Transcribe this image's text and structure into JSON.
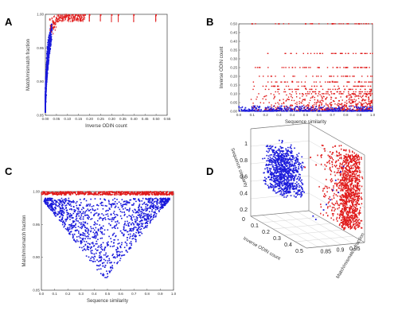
{
  "panels": {
    "a": {
      "letter": "A"
    },
    "b": {
      "letter": "B"
    },
    "c": {
      "letter": "C"
    },
    "d": {
      "letter": "D"
    }
  },
  "colors": {
    "blue": "#1a1adb",
    "red": "#e01b1b"
  },
  "chart_data": [
    {
      "id": "A",
      "type": "scatter",
      "xlabel": "Inverse ODIN count",
      "ylabel": "Match/mismatch fraction",
      "xlim": [
        0,
        0.55
      ],
      "ylim": [
        0.85,
        1.0
      ],
      "xticks": [
        "0.00",
        "0.05",
        "0.10",
        "0.15",
        "0.20",
        "0.25",
        "0.30",
        "0.35",
        "0.40",
        "0.45",
        "0.50",
        "0.55"
      ],
      "yticks": [
        "0.85",
        "0.90",
        "0.95",
        "1.00"
      ],
      "series": [
        {
          "color": "blue",
          "points": [
            [
              0.002,
              0.87
            ],
            [
              0.003,
              0.885
            ],
            [
              0.004,
              0.9
            ],
            [
              0.005,
              0.91
            ],
            [
              0.006,
              0.92
            ],
            [
              0.007,
              0.93
            ],
            [
              0.008,
              0.94
            ],
            [
              0.01,
              0.95
            ],
            [
              0.012,
              0.955
            ],
            [
              0.014,
              0.96
            ],
            [
              0.016,
              0.965
            ],
            [
              0.018,
              0.968
            ],
            [
              0.02,
              0.972
            ],
            [
              0.025,
              0.975
            ],
            [
              0.003,
              0.895
            ],
            [
              0.005,
              0.925
            ],
            [
              0.004,
              0.915
            ],
            [
              0.006,
              0.935
            ],
            [
              0.008,
              0.945
            ],
            [
              0.009,
              0.952
            ],
            [
              0.011,
              0.958
            ],
            [
              0.013,
              0.962
            ],
            [
              0.002,
              0.905
            ],
            [
              0.003,
              0.918
            ],
            [
              0.007,
              0.942
            ],
            [
              0.01,
              0.948
            ],
            [
              0.015,
              0.966
            ],
            [
              0.017,
              0.969
            ],
            [
              0.022,
              0.973
            ],
            [
              0.03,
              0.977
            ],
            [
              0.004,
              0.88
            ],
            [
              0.002,
              0.89
            ],
            [
              0.006,
              0.928
            ],
            [
              0.009,
              0.938
            ],
            [
              0.012,
              0.951
            ],
            [
              0.019,
              0.964
            ]
          ]
        },
        {
          "color": "red",
          "points": [
            [
              0.03,
              0.983
            ],
            [
              0.04,
              0.987
            ],
            [
              0.05,
              0.99
            ],
            [
              0.06,
              0.993
            ],
            [
              0.07,
              0.995
            ],
            [
              0.08,
              0.996
            ],
            [
              0.09,
              0.997
            ],
            [
              0.1,
              0.998
            ],
            [
              0.11,
              0.998
            ],
            [
              0.12,
              0.999
            ],
            [
              0.14,
              0.999
            ],
            [
              0.16,
              0.999
            ],
            [
              0.18,
              0.999
            ],
            [
              0.2,
              0.999
            ],
            [
              0.25,
              0.999
            ],
            [
              0.3,
              0.999
            ],
            [
              0.33,
              0.999
            ],
            [
              0.4,
              0.999
            ],
            [
              0.5,
              0.999
            ],
            [
              0.035,
              0.98
            ],
            [
              0.045,
              0.985
            ],
            [
              0.055,
              0.989
            ],
            [
              0.065,
              0.991
            ],
            [
              0.075,
              0.994
            ],
            [
              0.085,
              0.996
            ],
            [
              0.095,
              0.997
            ],
            [
              0.105,
              0.999
            ],
            [
              0.125,
              0.999
            ],
            [
              0.15,
              0.999
            ],
            [
              0.17,
              0.999
            ]
          ]
        }
      ]
    },
    {
      "id": "B",
      "type": "scatter",
      "xlabel": "Sequence similarity",
      "ylabel": "Inverse ODIN count",
      "xlim": [
        0,
        1.0
      ],
      "ylim": [
        0,
        0.5
      ],
      "xticks": [
        "0.0",
        "0.1",
        "0.2",
        "0.3",
        "0.4",
        "0.5",
        "0.6",
        "0.7",
        "0.8",
        "0.9",
        "1.0"
      ],
      "yticks": [
        "0.00",
        "0.05",
        "0.10",
        "0.15",
        "0.20",
        "0.25",
        "0.30",
        "0.35",
        "0.40",
        "0.45",
        "0.50"
      ],
      "series": [
        {
          "color": "blue",
          "points": [
            [
              0.02,
              0.01
            ],
            [
              0.05,
              0.02
            ],
            [
              0.08,
              0.01
            ],
            [
              0.1,
              0.02
            ],
            [
              0.15,
              0.01
            ],
            [
              0.2,
              0.02
            ],
            [
              0.25,
              0.01
            ],
            [
              0.3,
              0.02
            ],
            [
              0.35,
              0.01
            ],
            [
              0.4,
              0.01
            ],
            [
              0.45,
              0.02
            ],
            [
              0.5,
              0.01
            ],
            [
              0.55,
              0.01
            ],
            [
              0.6,
              0.02
            ],
            [
              0.65,
              0.01
            ],
            [
              0.7,
              0.01
            ],
            [
              0.75,
              0.02
            ],
            [
              0.8,
              0.01
            ],
            [
              0.85,
              0.01
            ],
            [
              0.9,
              0.01
            ],
            [
              0.95,
              0.01
            ],
            [
              0.12,
              0.03
            ],
            [
              0.22,
              0.02
            ],
            [
              0.32,
              0.03
            ],
            [
              0.42,
              0.02
            ],
            [
              0.52,
              0.02
            ],
            [
              0.62,
              0.02
            ]
          ]
        },
        {
          "color": "red",
          "points": [
            [
              0.1,
              0.5
            ],
            [
              0.3,
              0.5
            ],
            [
              0.5,
              0.5
            ],
            [
              0.7,
              0.5
            ],
            [
              0.9,
              0.5
            ],
            [
              0.6,
              0.25
            ],
            [
              0.8,
              0.25
            ],
            [
              0.95,
              0.25
            ],
            [
              0.4,
              0.17
            ],
            [
              0.7,
              0.17
            ],
            [
              0.9,
              0.17
            ],
            [
              0.5,
              0.13
            ],
            [
              0.75,
              0.13
            ],
            [
              0.85,
              0.1
            ],
            [
              0.95,
              0.1
            ],
            [
              0.55,
              0.08
            ],
            [
              0.65,
              0.07
            ],
            [
              0.75,
              0.06
            ],
            [
              0.85,
              0.05
            ],
            [
              0.92,
              0.04
            ],
            [
              0.6,
              0.03
            ],
            [
              0.8,
              0.03
            ],
            [
              0.97,
              0.08
            ],
            [
              0.99,
              0.12
            ]
          ]
        }
      ]
    },
    {
      "id": "C",
      "type": "scatter",
      "xlabel": "Sequence similarity",
      "ylabel": "Match/mismatch fraction",
      "xlim": [
        0,
        1.0
      ],
      "ylim": [
        0.85,
        1.0
      ],
      "xticks": [
        "0.0",
        "0.1",
        "0.2",
        "0.3",
        "0.4",
        "0.5",
        "0.6",
        "0.7",
        "0.8",
        "0.9",
        "1.0"
      ],
      "yticks": [
        "0.85",
        "0.90",
        "0.95",
        "1.00"
      ],
      "series": [
        {
          "color": "blue",
          "points": [
            [
              0.03,
              0.985
            ],
            [
              0.06,
              0.975
            ],
            [
              0.1,
              0.965
            ],
            [
              0.15,
              0.955
            ],
            [
              0.2,
              0.945
            ],
            [
              0.25,
              0.935
            ],
            [
              0.3,
              0.925
            ],
            [
              0.35,
              0.915
            ],
            [
              0.4,
              0.905
            ],
            [
              0.45,
              0.895
            ],
            [
              0.48,
              0.885
            ],
            [
              0.5,
              0.875
            ],
            [
              0.55,
              0.9
            ],
            [
              0.6,
              0.915
            ],
            [
              0.65,
              0.93
            ],
            [
              0.7,
              0.945
            ],
            [
              0.75,
              0.955
            ],
            [
              0.8,
              0.965
            ],
            [
              0.85,
              0.975
            ],
            [
              0.9,
              0.985
            ],
            [
              0.2,
              0.96
            ],
            [
              0.3,
              0.95
            ],
            [
              0.4,
              0.93
            ],
            [
              0.5,
              0.92
            ],
            [
              0.6,
              0.94
            ],
            [
              0.35,
              0.96
            ],
            [
              0.45,
              0.945
            ],
            [
              0.55,
              0.96
            ],
            [
              0.25,
              0.97
            ],
            [
              0.4,
              0.965
            ]
          ]
        },
        {
          "color": "red",
          "points": [
            [
              0.05,
              0.999
            ],
            [
              0.15,
              0.999
            ],
            [
              0.25,
              0.999
            ],
            [
              0.35,
              0.999
            ],
            [
              0.45,
              0.999
            ],
            [
              0.55,
              0.999
            ],
            [
              0.65,
              0.999
            ],
            [
              0.75,
              0.999
            ],
            [
              0.85,
              0.999
            ],
            [
              0.95,
              0.999
            ],
            [
              0.1,
              0.997
            ],
            [
              0.2,
              0.998
            ],
            [
              0.3,
              0.997
            ],
            [
              0.4,
              0.998
            ],
            [
              0.5,
              0.996
            ],
            [
              0.6,
              0.997
            ],
            [
              0.7,
              0.998
            ],
            [
              0.8,
              0.996
            ],
            [
              0.9,
              0.997
            ],
            [
              0.97,
              0.998
            ]
          ]
        }
      ]
    },
    {
      "id": "D",
      "type": "scatter",
      "xlabel": "Inverse ODIN count",
      "ylabel": "Match/mismatch fraction",
      "zlabel": "Sequence similarity",
      "xticks": [
        "0",
        "0.1",
        "0.2",
        "0.3",
        "0.4",
        "0.5"
      ],
      "yticks": [
        "0.85",
        "0.9",
        "0.95"
      ],
      "zticks": [
        "0.2",
        "0.4",
        "0.6",
        "0.8",
        "1"
      ],
      "series": [
        {
          "color": "blue",
          "points": [
            [
              0.02,
              0.9,
              0.4
            ],
            [
              0.03,
              0.92,
              0.5
            ],
            [
              0.04,
              0.93,
              0.6
            ],
            [
              0.05,
              0.94,
              0.7
            ],
            [
              0.02,
              0.88,
              0.3
            ],
            [
              0.03,
              0.91,
              0.45
            ],
            [
              0.04,
              0.95,
              0.8
            ],
            [
              0.05,
              0.96,
              0.85
            ],
            [
              0.06,
              0.95,
              0.55
            ],
            [
              0.01,
              0.87,
              0.35
            ]
          ]
        },
        {
          "color": "red",
          "points": [
            [
              0.1,
              0.99,
              0.9
            ],
            [
              0.2,
              0.99,
              0.8
            ],
            [
              0.3,
              0.99,
              0.7
            ],
            [
              0.4,
              0.99,
              0.6
            ],
            [
              0.5,
              0.99,
              0.5
            ],
            [
              0.15,
              0.99,
              0.95
            ],
            [
              0.25,
              0.99,
              0.85
            ],
            [
              0.35,
              0.99,
              0.75
            ],
            [
              0.45,
              0.99,
              0.65
            ],
            [
              0.05,
              0.99,
              0.4
            ]
          ]
        }
      ]
    }
  ]
}
